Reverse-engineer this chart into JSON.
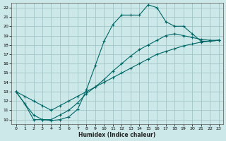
{
  "xlabel": "Humidex (Indice chaleur)",
  "xlim": [
    -0.5,
    23.5
  ],
  "ylim": [
    9.5,
    22.5
  ],
  "xticks": [
    0,
    1,
    2,
    3,
    4,
    5,
    6,
    7,
    8,
    9,
    10,
    11,
    12,
    13,
    14,
    15,
    16,
    17,
    18,
    19,
    20,
    21,
    22,
    23
  ],
  "yticks": [
    10,
    11,
    12,
    13,
    14,
    15,
    16,
    17,
    18,
    19,
    20,
    21,
    22
  ],
  "bg_color": "#cce8e8",
  "grid_color": "#9bbfbf",
  "line_color": "#006666",
  "line1_x": [
    0,
    1,
    2,
    3,
    4,
    5,
    6,
    7,
    8,
    9,
    10,
    11,
    12,
    13,
    14,
    15,
    16,
    17,
    18,
    19,
    20,
    21,
    22,
    23
  ],
  "line1_y": [
    13.0,
    11.7,
    10.0,
    10.0,
    9.9,
    10.0,
    10.3,
    11.1,
    13.2,
    15.8,
    18.4,
    20.2,
    21.2,
    21.2,
    21.2,
    22.3,
    22.0,
    20.5,
    20.0,
    20.0,
    19.2,
    18.4,
    18.4,
    18.5
  ],
  "line2_x": [
    0,
    1,
    2,
    3,
    4,
    5,
    6,
    7,
    8,
    9,
    10,
    11,
    12,
    13,
    14,
    15,
    16,
    17,
    18,
    19,
    20,
    21,
    22,
    23
  ],
  "line2_y": [
    13.0,
    12.5,
    12.0,
    11.5,
    11.0,
    11.5,
    12.0,
    12.5,
    13.0,
    13.5,
    14.0,
    14.5,
    15.0,
    15.5,
    16.0,
    16.5,
    17.0,
    17.3,
    17.6,
    17.9,
    18.1,
    18.3,
    18.4,
    18.5
  ],
  "line3_x": [
    0,
    1,
    2,
    3,
    4,
    5,
    6,
    7,
    8,
    9,
    10,
    11,
    12,
    13,
    14,
    15,
    16,
    17,
    18,
    19,
    20,
    21,
    22,
    23
  ],
  "line3_y": [
    13.0,
    11.7,
    10.5,
    10.0,
    10.0,
    10.5,
    11.0,
    11.8,
    12.8,
    13.5,
    14.3,
    15.2,
    16.0,
    16.8,
    17.5,
    18.0,
    18.5,
    19.0,
    19.2,
    19.0,
    18.8,
    18.6,
    18.5,
    18.5
  ]
}
